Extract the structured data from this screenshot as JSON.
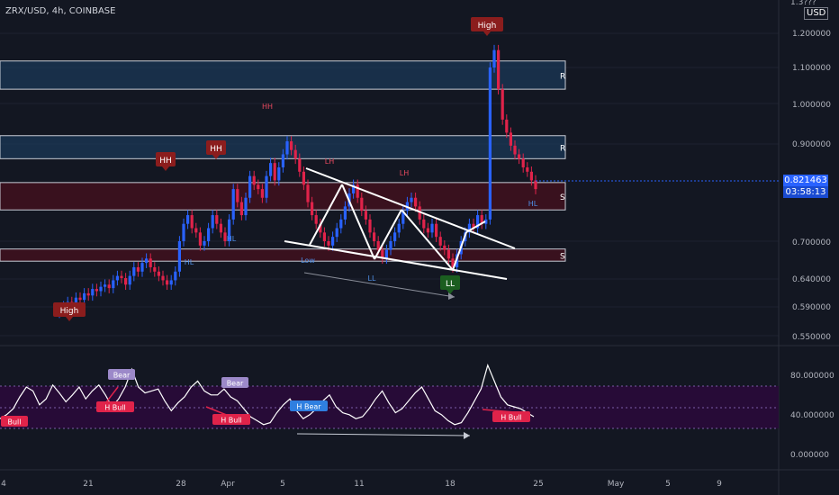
{
  "symbol": "ZRX/USD, 4h, COINBASE",
  "currency": "USD",
  "top_price_cut": "1.3???",
  "last_price": "0.821463",
  "countdown": "03:58:13",
  "colors": {
    "bg": "#131722",
    "grid": "#1e2230",
    "up": "#2962ff",
    "down": "#e0234a",
    "r_zone": "#1b3a5a",
    "s_zone": "#4a0f1c",
    "label_red": "#8b1d1d",
    "label_green": "#1b5e20",
    "rsi_band": "#2a0a3a",
    "white": "#ffffff",
    "text_blue": "#4f8fe6",
    "text_red": "#e84a5f"
  },
  "chart_data": {
    "type": "candlestick",
    "y_ticks": [
      "1.200000",
      "1.100000",
      "1.000000",
      "0.900000",
      "0.821463",
      "0.700000",
      "0.640000",
      "0.590000",
      "0.550000"
    ],
    "x_ticks": [
      "4",
      "21",
      "28",
      "Apr",
      "5",
      "11",
      "18",
      "25",
      "May",
      "5",
      "9"
    ],
    "close_series": [
      0.545,
      0.55,
      0.56,
      0.555,
      0.57,
      0.565,
      0.58,
      0.575,
      0.59,
      0.585,
      0.595,
      0.6,
      0.592,
      0.61,
      0.62,
      0.615,
      0.6,
      0.62,
      0.64,
      0.63,
      0.65,
      0.66,
      0.64,
      0.63,
      0.62,
      0.61,
      0.6,
      0.61,
      0.63,
      0.7,
      0.74,
      0.76,
      0.73,
      0.72,
      0.69,
      0.7,
      0.73,
      0.76,
      0.74,
      0.72,
      0.7,
      0.75,
      0.82,
      0.79,
      0.76,
      0.8,
      0.85,
      0.83,
      0.82,
      0.8,
      0.85,
      0.88,
      0.84,
      0.87,
      0.9,
      0.93,
      0.91,
      0.89,
      0.86,
      0.83,
      0.79,
      0.76,
      0.74,
      0.72,
      0.7,
      0.69,
      0.71,
      0.73,
      0.75,
      0.78,
      0.81,
      0.83,
      0.8,
      0.77,
      0.75,
      0.72,
      0.7,
      0.68,
      0.66,
      0.68,
      0.7,
      0.72,
      0.74,
      0.77,
      0.79,
      0.8,
      0.78,
      0.75,
      0.73,
      0.72,
      0.74,
      0.71,
      0.69,
      0.68,
      0.66,
      0.64,
      0.67,
      0.7,
      0.72,
      0.74,
      0.73,
      0.76,
      0.74,
      0.75,
      1.1,
      1.14,
      1.05,
      0.98,
      0.95,
      0.92,
      0.9,
      0.89,
      0.87,
      0.86,
      0.84,
      0.82
    ],
    "zones": [
      {
        "label": "R",
        "top": 1.115,
        "bottom": 1.05
      },
      {
        "label": "R",
        "top": 0.943,
        "bottom": 0.89
      },
      {
        "label": "S",
        "top": 0.835,
        "bottom": 0.772
      },
      {
        "label": "S",
        "top": 0.682,
        "bottom": 0.654
      }
    ],
    "annotations": [
      {
        "text": "High",
        "kind": "marker-red"
      },
      {
        "text": "HH",
        "kind": "marker-red"
      },
      {
        "text": "HH",
        "kind": "marker-red"
      },
      {
        "text": "High",
        "kind": "marker-red"
      },
      {
        "text": "LL",
        "kind": "marker-green"
      },
      {
        "text": "HH",
        "kind": "text-red"
      },
      {
        "text": "LH",
        "kind": "text-red"
      },
      {
        "text": "LH",
        "kind": "text-red"
      },
      {
        "text": "HL",
        "kind": "text-blue"
      },
      {
        "text": "HL",
        "kind": "text-blue"
      },
      {
        "text": "HL",
        "kind": "text-blue"
      },
      {
        "text": "Low",
        "kind": "text-blue"
      },
      {
        "text": "LL",
        "kind": "text-blue"
      }
    ],
    "rsi": {
      "y_ticks": [
        "80.000000",
        "40.000000",
        "0.000000"
      ],
      "values": [
        38,
        42,
        48,
        60,
        70,
        66,
        52,
        58,
        72,
        64,
        55,
        62,
        70,
        58,
        66,
        72,
        62,
        50,
        58,
        70,
        88,
        70,
        64,
        66,
        68,
        56,
        46,
        54,
        60,
        70,
        76,
        66,
        62,
        62,
        68,
        60,
        56,
        48,
        40,
        36,
        32,
        34,
        44,
        52,
        58,
        46,
        38,
        42,
        48,
        56,
        62,
        50,
        44,
        42,
        38,
        40,
        48,
        58,
        66,
        54,
        44,
        48,
        56,
        64,
        70,
        58,
        46,
        42,
        36,
        32,
        34,
        44,
        56,
        68,
        92,
        76,
        60,
        52,
        50,
        48,
        44,
        40
      ],
      "labels": [
        {
          "text": "Bull",
          "kind": "bull"
        },
        {
          "text": "Bear",
          "kind": "bear"
        },
        {
          "text": "H Bull",
          "kind": "bull"
        },
        {
          "text": "Bear",
          "kind": "bear"
        },
        {
          "text": "H Bull",
          "kind": "bull"
        },
        {
          "text": "H Bear",
          "kind": "hbear"
        },
        {
          "text": "H Bull",
          "kind": "bull"
        }
      ]
    }
  }
}
